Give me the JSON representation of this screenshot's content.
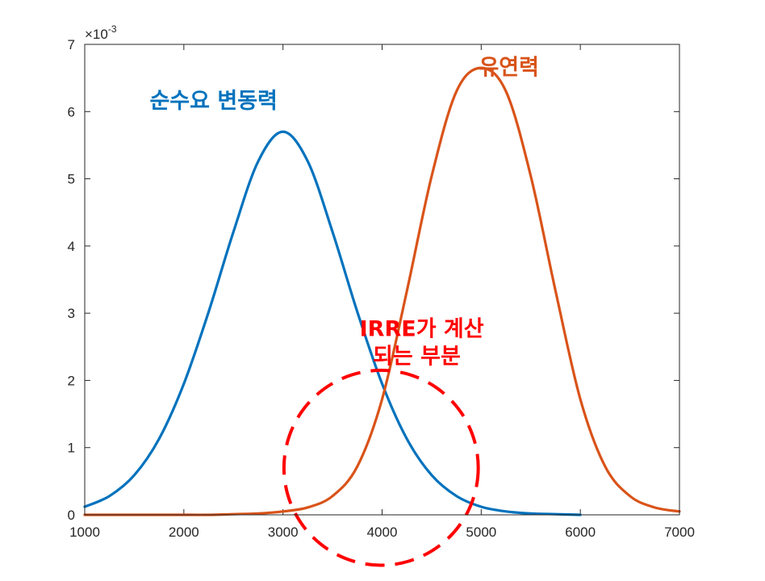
{
  "chart_data": {
    "type": "line",
    "title": "",
    "xlabel": "",
    "ylabel": "",
    "xlim": [
      1000,
      7000
    ],
    "ylim": [
      0,
      7
    ],
    "x_ticks": [
      "1000",
      "2000",
      "3000",
      "4000",
      "5000",
      "6000",
      "7000"
    ],
    "y_ticks": [
      "0",
      "1",
      "2",
      "3",
      "4",
      "5",
      "6",
      "7"
    ],
    "y_exponent": "×10",
    "y_exponent_power": "-3",
    "grid": false,
    "x": [
      1000,
      1250,
      1500,
      1750,
      2000,
      2250,
      2500,
      2750,
      3000,
      3250,
      3500,
      3750,
      4000,
      4250,
      4500,
      4750,
      5000,
      5250,
      5500,
      5750,
      6000,
      6250,
      6500,
      6750,
      7000
    ],
    "series": [
      {
        "name": "순수요 변동력",
        "color": "#0072BD",
        "x_end": 6000,
        "values": [
          0.12,
          0.28,
          0.59,
          1.13,
          1.95,
          3.02,
          4.21,
          5.26,
          5.7,
          5.26,
          4.21,
          3.02,
          1.95,
          1.13,
          0.59,
          0.28,
          0.12,
          0.05,
          0.02,
          0.01,
          0.0,
          null,
          null,
          null,
          null
        ]
      },
      {
        "name": "유연력",
        "color": "#D95319",
        "values": [
          0.0,
          0.0,
          0.0,
          0.0,
          0.0,
          0.0,
          0.01,
          0.02,
          0.05,
          0.11,
          0.28,
          0.72,
          1.72,
          3.33,
          5.04,
          6.3,
          6.65,
          6.3,
          5.04,
          3.33,
          1.72,
          0.72,
          0.28,
          0.11,
          0.05
        ]
      }
    ],
    "annotations": [
      {
        "text": "순수요 변동력",
        "color": "#0072BD",
        "at_x": 2300,
        "at_y": 6.05
      },
      {
        "text": "유연력",
        "color": "#D95319",
        "at_x": 5280,
        "at_y": 6.55
      },
      {
        "text": "IRRE가 계산",
        "color": "#FF0000",
        "at_x": 4400,
        "at_y": 2.66
      },
      {
        "text": "되는 부분",
        "color": "#FF0000",
        "at_x": 4350,
        "at_y": 2.25
      }
    ],
    "highlight_circle": {
      "cx": 3990,
      "cy": 0.7,
      "rx": 980,
      "ry": 1.45,
      "color": "#FF0000",
      "style": "dashed"
    }
  }
}
